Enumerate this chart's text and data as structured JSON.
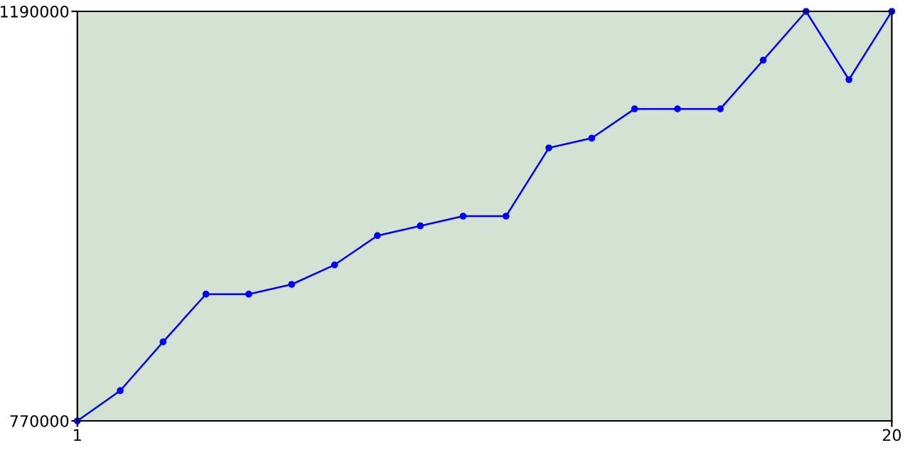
{
  "chart_data": {
    "type": "line",
    "x": [
      1,
      2,
      3,
      4,
      5,
      6,
      7,
      8,
      9,
      10,
      11,
      12,
      13,
      14,
      15,
      16,
      17,
      18,
      19,
      20
    ],
    "series": [
      {
        "color": "#0000ff",
        "values": [
          770000,
          801000,
          851000,
          900000,
          900000,
          910000,
          930000,
          960000,
          970000,
          980000,
          980000,
          1050000,
          1060000,
          1090000,
          1090000,
          1090000,
          1140000,
          1190000,
          1120000,
          1190000
        ]
      }
    ],
    "xlim": [
      1,
      20
    ],
    "xticks": [
      1,
      20
    ],
    "ylim": [
      770000,
      1190000
    ],
    "yticks": [
      770000,
      1190000
    ],
    "marker": "circle",
    "line_style": "solid",
    "grid": false,
    "legend": false
  }
}
